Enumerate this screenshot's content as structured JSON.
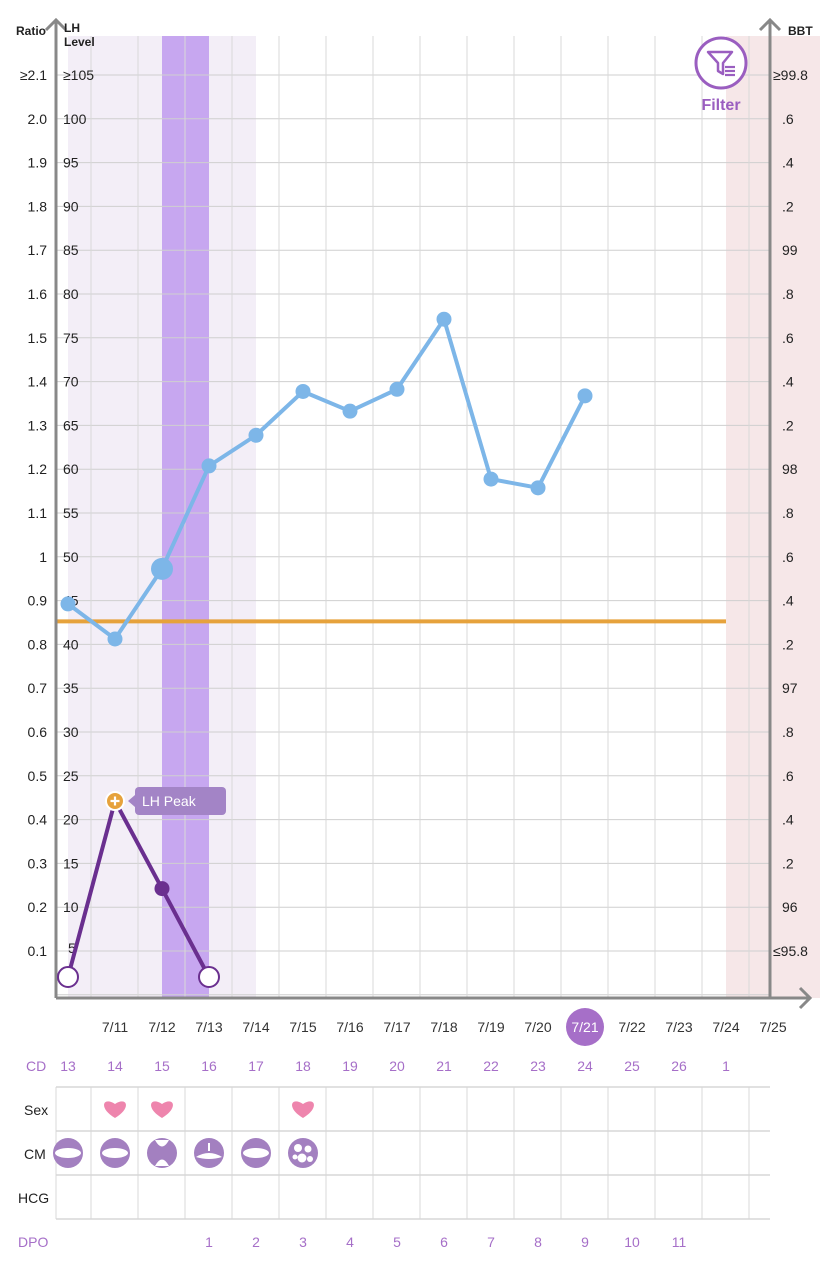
{
  "colors": {
    "fertile_window": "#f3eef7",
    "peak_day": "#c7a7f0",
    "period": "#f6e7e8",
    "bbt_line": "#7db6e8",
    "lh_line": "#6a2f8f",
    "coverline": "#e6a23c",
    "accent": "#a66fc8"
  },
  "chart_data": {
    "type": "line",
    "axes": {
      "ratio": {
        "title": "Ratio",
        "ticks": [
          "≥2.1",
          "2.0",
          "1.9",
          "1.8",
          "1.7",
          "1.6",
          "1.5",
          "1.4",
          "1.3",
          "1.2",
          "1.1",
          "1",
          "0.9",
          "0.8",
          "0.7",
          "0.6",
          "0.5",
          "0.4",
          "0.3",
          "0.2",
          "0.1"
        ],
        "range": [
          0,
          2.1
        ]
      },
      "lh": {
        "title_line1": "LH",
        "title_line2": "Level",
        "ticks": [
          "≥105",
          "100",
          "95",
          "90",
          "85",
          "80",
          "75",
          "70",
          "65",
          "60",
          "55",
          "50",
          "45",
          "40",
          "35",
          "30",
          "25",
          "20",
          "15",
          "10",
          "5"
        ],
        "range": [
          0,
          105
        ]
      },
      "bbt": {
        "title": "BBT",
        "ticks": [
          "≥99.8",
          ".6",
          ".4",
          ".2",
          "99",
          ".8",
          ".6",
          ".4",
          ".2",
          "98",
          ".8",
          ".6",
          ".4",
          ".2",
          "97",
          ".8",
          ".6",
          ".4",
          ".2",
          "96",
          "≤95.8"
        ],
        "range": [
          95.8,
          99.8
        ]
      }
    },
    "x_labels": [
      "",
      "7/11",
      "7/12",
      "7/13",
      "7/14",
      "7/15",
      "7/16",
      "7/17",
      "7/18",
      "7/19",
      "7/20",
      "7/21",
      "7/22",
      "7/23",
      "7/24",
      "7/25"
    ],
    "today_index": 11,
    "bbt_series": [
      {
        "day": 0,
        "value": 97.5
      },
      {
        "day": 1,
        "value": 97.34
      },
      {
        "day": 2,
        "value": 97.66,
        "emphasized": true
      },
      {
        "day": 3,
        "value": 98.13
      },
      {
        "day": 4,
        "value": 98.27
      },
      {
        "day": 5,
        "value": 98.47
      },
      {
        "day": 6,
        "value": 98.38
      },
      {
        "day": 7,
        "value": 98.48
      },
      {
        "day": 8,
        "value": 98.8
      },
      {
        "day": 9,
        "value": 98.07
      },
      {
        "day": 10,
        "value": 98.03
      },
      {
        "day": 11,
        "value": 98.45
      }
    ],
    "lh_series": [
      {
        "day": 0,
        "value": 0.0,
        "style": "open"
      },
      {
        "day": 1,
        "value": 25,
        "style": "peak"
      },
      {
        "day": 2,
        "value": 15,
        "style": "filled"
      },
      {
        "day": 3,
        "value": 0.0,
        "style": "open"
      }
    ],
    "coverline_bbt": 97.42,
    "coverline_end_day": 14,
    "peak_label": "LH Peak",
    "shading": {
      "fertile_days": [
        0,
        1,
        3
      ],
      "peak_day": 2,
      "period_days": [
        14,
        15
      ]
    },
    "grid": true
  },
  "rows": {
    "cd_label": "CD",
    "cd_values": [
      "13",
      "14",
      "15",
      "16",
      "17",
      "18",
      "19",
      "20",
      "21",
      "22",
      "23",
      "24",
      "25",
      "26",
      "1"
    ],
    "sex_label": "Sex",
    "sex_days": [
      1,
      2,
      5
    ],
    "cm_label": "CM",
    "cm_icons": [
      {
        "day": 0,
        "icon": "cm-dry-icon"
      },
      {
        "day": 1,
        "icon": "cm-dry-icon"
      },
      {
        "day": 2,
        "icon": "cm-sticky-icon"
      },
      {
        "day": 3,
        "icon": "cm-creamy-icon"
      },
      {
        "day": 4,
        "icon": "cm-dry-icon"
      },
      {
        "day": 5,
        "icon": "cm-eggwhite-icon"
      }
    ],
    "hcg_label": "HCG",
    "dpo_label": "DPO",
    "dpo_values": [
      "",
      "",
      "",
      "1",
      "2",
      "3",
      "4",
      "5",
      "6",
      "7",
      "8",
      "9",
      "10",
      "11",
      ""
    ]
  },
  "filter": {
    "label": "Filter",
    "icon": "funnel-icon"
  }
}
